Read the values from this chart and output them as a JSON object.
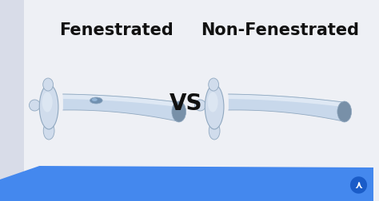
{
  "bg_color": "#eef0f5",
  "left_strip_color": "#d8dce8",
  "blue_bar_color": "#4488ee",
  "title_left": "Fenestrated",
  "title_right": "Non-Fenestrated",
  "vs_text": "VS",
  "title_fontsize": 15,
  "vs_fontsize": 20,
  "title_color": "#111111",
  "tube_fill": "#c8d8eb",
  "tube_highlight": "#e8f0f8",
  "tube_edge": "#90a8c0",
  "tube_dark": "#7890a8",
  "flange_fill": "#d0dcec",
  "flange_edge": "#90a8c0",
  "fen_fill": "#7090b0",
  "figsize": [
    4.74,
    2.52
  ],
  "dpi": 100
}
